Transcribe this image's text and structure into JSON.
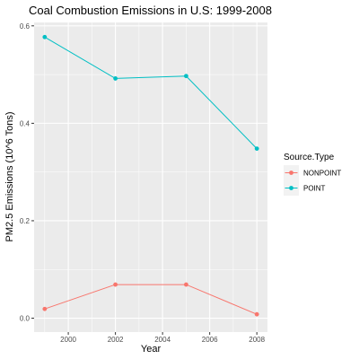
{
  "chart_data": {
    "type": "line",
    "title": "Coal Combustion Emissions in U.S: 1999-2008",
    "xlabel": "Year",
    "ylabel": "PM2.5 Emissions (10^6 Tons)",
    "x": [
      1999,
      2002,
      2005,
      2008
    ],
    "xlim": [
      1998.55,
      2008.45
    ],
    "ylim": [
      -0.0285,
      0.607
    ],
    "xticks": [
      2000,
      2002,
      2004,
      2006,
      2008
    ],
    "yticks": [
      0.0,
      0.2,
      0.4,
      0.6
    ],
    "xtick_labels": [
      "2000",
      "2002",
      "2004",
      "2006",
      "2008"
    ],
    "ytick_labels": [
      "0.0",
      "0.2",
      "0.4",
      "0.6"
    ],
    "grid": true,
    "legend": {
      "title": "Source.Type",
      "placement": "right"
    },
    "series": [
      {
        "name": "NONPOINT",
        "color": "#F8766D",
        "values": [
          0.019,
          0.069,
          0.069,
          0.008
        ]
      },
      {
        "name": "POINT",
        "color": "#00BFC4",
        "values": [
          0.577,
          0.492,
          0.497,
          0.348
        ]
      }
    ],
    "panel_background": "#EBEBEB",
    "grid_color": "#FFFFFF"
  }
}
